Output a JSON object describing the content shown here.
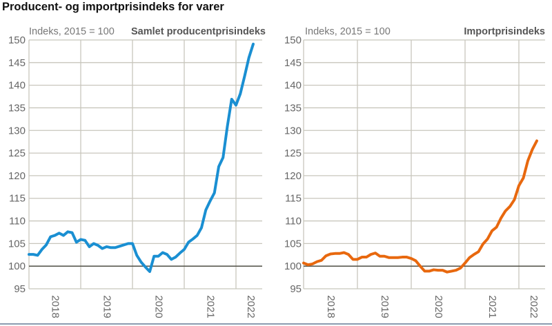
{
  "title": "Producent- og importprisindeks for varer",
  "colors": {
    "producer": "#1a8fd2",
    "import": "#e8680e",
    "grid": "#c8c6bc",
    "baseline": "#5a5a50"
  },
  "chart_data": [
    {
      "type": "line",
      "subtitle": "Indeks, 2015 = 100",
      "series_label": "Samlet producentprisindeks",
      "ylim": [
        95,
        150
      ],
      "yticks": [
        95,
        100,
        105,
        110,
        115,
        120,
        125,
        130,
        135,
        140,
        145,
        150
      ],
      "year_labels": [
        "2018",
        "2019",
        "2020",
        "2021",
        "2022"
      ],
      "grid": true,
      "reference_line": 100,
      "x": [
        "2018-01",
        "2018-02",
        "2018-03",
        "2018-04",
        "2018-05",
        "2018-06",
        "2018-07",
        "2018-08",
        "2018-09",
        "2018-10",
        "2018-11",
        "2018-12",
        "2019-01",
        "2019-02",
        "2019-03",
        "2019-04",
        "2019-05",
        "2019-06",
        "2019-07",
        "2019-08",
        "2019-09",
        "2019-10",
        "2019-11",
        "2019-12",
        "2020-01",
        "2020-02",
        "2020-03",
        "2020-04",
        "2020-05",
        "2020-06",
        "2020-07",
        "2020-08",
        "2020-09",
        "2020-10",
        "2020-11",
        "2020-12",
        "2021-01",
        "2021-02",
        "2021-03",
        "2021-04",
        "2021-05",
        "2021-06",
        "2021-07",
        "2021-08",
        "2021-09",
        "2021-10",
        "2021-11",
        "2021-12",
        "2022-01",
        "2022-02",
        "2022-03",
        "2022-04",
        "2022-05"
      ],
      "values": [
        102.6,
        102.6,
        102.4,
        103.7,
        104.7,
        106.5,
        106.8,
        107.3,
        106.8,
        107.6,
        107.4,
        105.3,
        105.9,
        105.7,
        104.3,
        105.0,
        104.6,
        103.9,
        104.3,
        104.1,
        104.1,
        104.4,
        104.7,
        105.0,
        105.0,
        102.4,
        100.9,
        99.8,
        98.8,
        102.2,
        102.2,
        103.0,
        102.6,
        101.5,
        102.0,
        102.9,
        103.7,
        105.3,
        106.0,
        106.8,
        108.5,
        112.4,
        114.4,
        116.2,
        122.0,
        124.0,
        130.9,
        136.9,
        135.6,
        138.1,
        142.0,
        146.1,
        149.1
      ]
    },
    {
      "type": "line",
      "subtitle": "Indeks, 2015 = 100",
      "series_label": "Importprisindeks",
      "ylim": [
        95,
        150
      ],
      "yticks": [
        95,
        100,
        105,
        110,
        115,
        120,
        125,
        130,
        135,
        140,
        145,
        150
      ],
      "year_labels": [
        "2018",
        "2019",
        "2020",
        "2021",
        "2022"
      ],
      "grid": true,
      "reference_line": 100,
      "x": [
        "2018-01",
        "2018-02",
        "2018-03",
        "2018-04",
        "2018-05",
        "2018-06",
        "2018-07",
        "2018-08",
        "2018-09",
        "2018-10",
        "2018-11",
        "2018-12",
        "2019-01",
        "2019-02",
        "2019-03",
        "2019-04",
        "2019-05",
        "2019-06",
        "2019-07",
        "2019-08",
        "2019-09",
        "2019-10",
        "2019-11",
        "2019-12",
        "2020-01",
        "2020-02",
        "2020-03",
        "2020-04",
        "2020-05",
        "2020-06",
        "2020-07",
        "2020-08",
        "2020-09",
        "2020-10",
        "2020-11",
        "2020-12",
        "2021-01",
        "2021-02",
        "2021-03",
        "2021-04",
        "2021-05",
        "2021-06",
        "2021-07",
        "2021-08",
        "2021-09",
        "2021-10",
        "2021-11",
        "2021-12",
        "2022-01",
        "2022-02",
        "2022-03",
        "2022-04",
        "2022-05"
      ],
      "values": [
        100.7,
        100.3,
        100.5,
        101.0,
        101.3,
        102.3,
        102.7,
        102.8,
        102.8,
        103.0,
        102.6,
        101.5,
        101.5,
        102.0,
        102.0,
        102.6,
        102.9,
        102.2,
        102.2,
        101.9,
        101.9,
        101.9,
        102.0,
        102.0,
        101.7,
        101.2,
        100.0,
        98.9,
        98.9,
        99.2,
        99.1,
        99.1,
        98.7,
        98.9,
        99.1,
        99.6,
        100.7,
        101.9,
        102.6,
        103.2,
        104.9,
        106.0,
        107.8,
        108.6,
        110.6,
        112.2,
        113.2,
        114.7,
        117.8,
        119.5,
        123.3,
        125.8,
        127.7
      ]
    }
  ]
}
